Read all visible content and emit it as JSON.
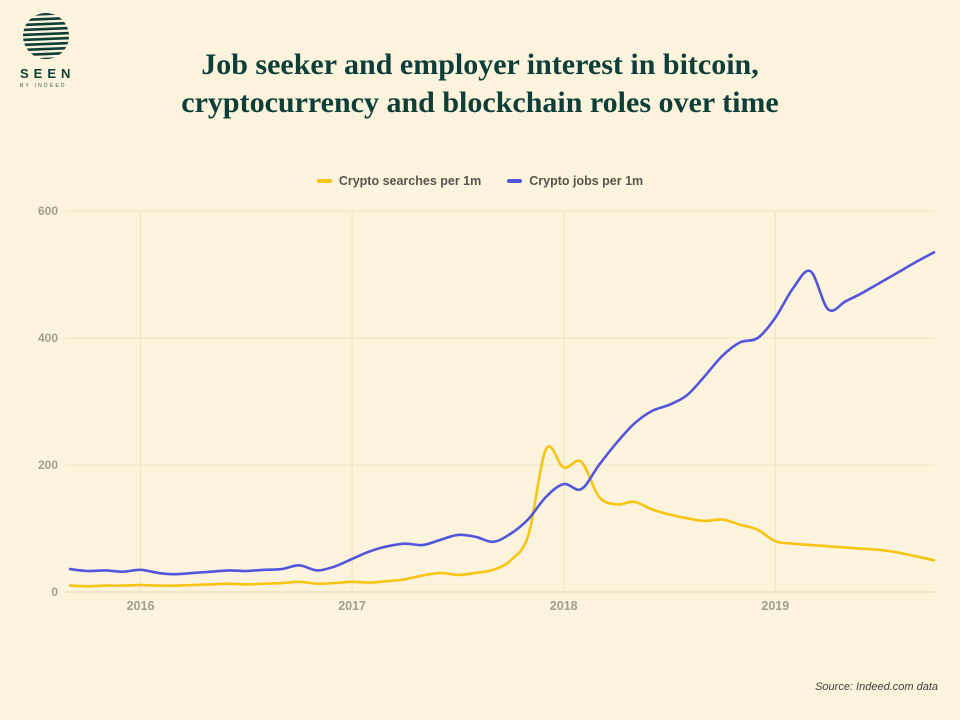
{
  "page": {
    "background": "#FCF3DC",
    "title_line1": "Job seeker and employer interest in bitcoin,",
    "title_line2": "cryptocurrency and blockchain roles over time",
    "title_color": "#0E3E38",
    "source": "Source: Indeed.com data"
  },
  "logo": {
    "brand": "SEEN",
    "sub": "BY INDEED",
    "color": "#0E3E38",
    "icon": "striped-globe-icon"
  },
  "chart_data": {
    "type": "line",
    "title": "Job seeker and employer interest in bitcoin, cryptocurrency and blockchain roles over time",
    "xlabel": "",
    "ylabel": "",
    "x_unit": "month",
    "x_start": "2015-09",
    "x_end": "2019-10",
    "ylim": [
      0,
      600
    ],
    "yticks": [
      0,
      200,
      400,
      600
    ],
    "xticks": [
      "2016",
      "2017",
      "2018",
      "2019"
    ],
    "xtick_positions": [
      4,
      16,
      28,
      40
    ],
    "grid": true,
    "legend_position": "top-center",
    "colors": {
      "grid": "#F0E4C2",
      "axis": "#E3D5AE",
      "tick_text": "#A39D8F"
    },
    "series": [
      {
        "name": "Crypto searches per 1m",
        "color": "#F7C413",
        "values": [
          10,
          9,
          10,
          10,
          11,
          10,
          10,
          11,
          12,
          13,
          12,
          13,
          14,
          16,
          13,
          14,
          16,
          15,
          17,
          20,
          26,
          30,
          27,
          30,
          35,
          50,
          90,
          225,
          196,
          205,
          150,
          138,
          142,
          130,
          122,
          116,
          112,
          114,
          106,
          98,
          80,
          76,
          74,
          72,
          70,
          68,
          66,
          62,
          56,
          50
        ]
      },
      {
        "name": "Crypto jobs per 1m",
        "color": "#5156DB",
        "values": [
          36,
          33,
          34,
          32,
          35,
          30,
          28,
          30,
          32,
          34,
          33,
          35,
          36,
          42,
          34,
          40,
          52,
          64,
          72,
          76,
          74,
          82,
          90,
          87,
          79,
          92,
          115,
          150,
          170,
          162,
          200,
          235,
          265,
          285,
          295,
          310,
          340,
          372,
          393,
          400,
          432,
          478,
          505,
          445,
          458,
          472,
          488,
          504,
          520,
          535
        ]
      }
    ]
  }
}
